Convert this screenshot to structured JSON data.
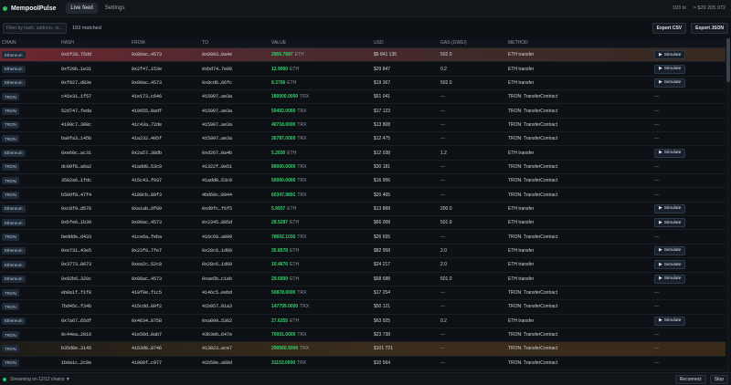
{
  "app": {
    "title": "MempoolPulse"
  },
  "tabs": [
    {
      "label": "Live feed"
    },
    {
      "label": "Settings"
    }
  ],
  "top_stats": {
    "tx_count": "193 tx",
    "usd_total": "≈ $29 205 972"
  },
  "filter": {
    "placeholder": "Filter by hash, address, or...",
    "matched": "193 matched"
  },
  "actions": {
    "export_csv": "Export CSV",
    "export_json": "Export JSON"
  },
  "columns": [
    "CHAIN",
    "HASH",
    "FROM",
    "TO",
    "VALUE",
    "USD",
    "GAS (GWEI)",
    "METHOD",
    ""
  ],
  "simulate_label": "Simulate",
  "rows": [
    {
      "chain": "Ethereum",
      "hash": "0x6f28…75dd",
      "from": "0x80ac…4573",
      "to": "0x0003…0a4e",
      "value": "2956.7687",
      "unit": "ETH",
      "usd": "$6 841 135",
      "gas": "502.0",
      "method": "ETH transfer",
      "sim": true,
      "hl": "red"
    },
    {
      "chain": "Ethereum",
      "hash": "0xf20b…1e31",
      "from": "0x2f47…153e",
      "to": "0xbd74…7e98",
      "value": "12.9000",
      "unit": "ETH",
      "usd": "$29 847",
      "gas": "0.2",
      "method": "ETH transfer",
      "sim": true,
      "hl": ""
    },
    {
      "chain": "Ethereum",
      "hash": "0xf927…d83e",
      "from": "0x80ac…4573",
      "to": "0x0cd6…66fc",
      "value": "8.3706",
      "unit": "ETH",
      "usd": "$19 367",
      "gas": "502.0",
      "method": "ETH transfer",
      "sim": true,
      "hl": ""
    },
    {
      "chain": "TRON",
      "hash": "c41e31…1f57",
      "from": "41e173…c646",
      "to": "415907…ae3a",
      "value": "180000.0000",
      "unit": "TRX",
      "usd": "$61 041",
      "gas": "—",
      "method": "TRON: TransferContract",
      "sim": false,
      "hl": ""
    },
    {
      "chain": "TRON",
      "hash": "52d747…feda",
      "from": "419655…0adf",
      "to": "415907…ae3a",
      "value": "50492.0000",
      "unit": "TRX",
      "usd": "$17 123",
      "gas": "—",
      "method": "TRON: TransferContract",
      "sim": false,
      "hl": ""
    },
    {
      "chain": "TRON",
      "hash": "4100c7…308c",
      "from": "41c43a…72de",
      "to": "415907…ae3a",
      "value": "40718.0000",
      "unit": "TRX",
      "usd": "$13 808",
      "gas": "—",
      "method": "TRON: TransferContract",
      "sim": false,
      "hl": ""
    },
    {
      "chain": "TRON",
      "hash": "ba0fa3…145b",
      "from": "41a232…405f",
      "to": "415907…ae3a",
      "value": "36787.0000",
      "unit": "TRX",
      "usd": "$12 475",
      "gas": "—",
      "method": "TRON: TransferContract",
      "sim": false,
      "hl": ""
    },
    {
      "chain": "Ethereum",
      "hash": "0xe60c…ac31",
      "from": "0x2a57…38db",
      "to": "0xd267…0a4b",
      "value": "5.2030",
      "unit": "ETH",
      "usd": "$12 038",
      "gas": "1.2",
      "method": "ETH transfer",
      "sim": true,
      "hl": ""
    },
    {
      "chain": "TRON",
      "hash": "dc00f8…a6a2",
      "from": "41add0…53c0",
      "to": "41322f…0e51",
      "value": "89000.0000",
      "unit": "TRX",
      "usd": "$30 181",
      "gas": "—",
      "method": "TRON: TransferContract",
      "sim": false,
      "hl": ""
    },
    {
      "chain": "TRON",
      "hash": "3582a6…1fdc",
      "from": "415c43…f037",
      "to": "41add0…53c0",
      "value": "50000.0000",
      "unit": "TRX",
      "usd": "$16 956",
      "gas": "—",
      "method": "TRON: TransferContract",
      "sim": false,
      "hl": ""
    },
    {
      "chain": "TRON",
      "hash": "b59df8…47f4",
      "from": "4189cb…89f3",
      "to": "4bd69c…8944",
      "value": "60347.9891",
      "unit": "TRX",
      "usd": "$20 465",
      "gas": "—",
      "method": "TRON: TransferContract",
      "sim": false,
      "hl": ""
    },
    {
      "chain": "Ethereum",
      "hash": "0xc8f9…d578",
      "from": "0xa1ab…df09",
      "to": "0xd9fc…f6f5",
      "value": "5.9937",
      "unit": "ETH",
      "usd": "$13 868",
      "gas": "200.0",
      "method": "ETH transfer",
      "sim": true,
      "hl": ""
    },
    {
      "chain": "Ethereum",
      "hash": "0xbfe6…1b39",
      "from": "0x80ac…4573",
      "to": "0x2345…885d",
      "value": "28.5287",
      "unit": "ETH",
      "usd": "$66 008",
      "gas": "501.9",
      "method": "ETH transfer",
      "sim": true,
      "hl": ""
    },
    {
      "chain": "TRON",
      "hash": "beddde…d433",
      "from": "41ce6a…feba",
      "to": "416c69…a899",
      "value": "78602.1035",
      "unit": "TRX",
      "usd": "$26 655",
      "gas": "—",
      "method": "TRON: TransferContract",
      "sim": false,
      "hl": ""
    },
    {
      "chain": "Ethereum",
      "hash": "0xe731…43e5",
      "from": "0x23f0…7fe7",
      "to": "0x28c6…1d60",
      "value": "35.8578",
      "unit": "ETH",
      "usd": "$82 958",
      "gas": "2.0",
      "method": "ETH transfer",
      "sim": true,
      "hl": ""
    },
    {
      "chain": "Ethereum",
      "hash": "0x3773…0673",
      "from": "0xea2c…52c8",
      "to": "0x28c6…1d60",
      "value": "10.4676",
      "unit": "ETH",
      "usd": "$24 217",
      "gas": "2.0",
      "method": "ETH transfer",
      "sim": true,
      "hl": ""
    },
    {
      "chain": "Ethereum",
      "hash": "0x02b6…328c",
      "from": "0x80ac…4573",
      "to": "0xae5b…c1eb",
      "value": "29.6899",
      "unit": "ETH",
      "usd": "$68 688",
      "gas": "501.0",
      "method": "ETH transfer",
      "sim": true,
      "hl": ""
    },
    {
      "chain": "TRON",
      "hash": "eb8a1f…f1f8",
      "from": "410f9e…f1c5",
      "to": "4146c5…eebd",
      "value": "50878.0000",
      "unit": "TRX",
      "usd": "$17 254",
      "gas": "—",
      "method": "TRON: TransferContract",
      "sim": false,
      "hl": ""
    },
    {
      "chain": "TRON",
      "hash": "7bd45c…f34b",
      "from": "415cdd…09f2",
      "to": "41b957…91a3",
      "value": "147799.0000",
      "unit": "TRX",
      "usd": "$50 121",
      "gas": "—",
      "method": "TRON: TransferContract",
      "sim": false,
      "hl": ""
    },
    {
      "chain": "Ethereum",
      "hash": "0x7a67…65df",
      "from": "0x4634…8758",
      "to": "0xa099…5362",
      "value": "27.6255",
      "unit": "ETH",
      "usd": "$63 925",
      "gas": "0.2",
      "method": "ETH transfer",
      "sim": true,
      "hl": ""
    },
    {
      "chain": "TRON",
      "hash": "9c44ea…2816",
      "from": "41e50d…0ab7",
      "to": "43b3eb…647e",
      "value": "70001.0000",
      "unit": "TRX",
      "usd": "$23 738",
      "gas": "—",
      "method": "TRON: TransferContract",
      "sim": false,
      "hl": ""
    },
    {
      "chain": "TRON",
      "hash": "b35d8e…3145",
      "from": "4163d8…8746",
      "to": "413823…ace7",
      "value": "299560.5000",
      "unit": "TRX",
      "usd": "$101 721",
      "gas": "—",
      "method": "TRON: TransferContract",
      "sim": false,
      "hl": "amber"
    },
    {
      "chain": "TRON",
      "hash": "1b9a1c…2c8e",
      "from": "41980f…c977",
      "to": "41b59e…a68d",
      "value": "31153.0000",
      "unit": "TRX",
      "usd": "$10 564",
      "gas": "—",
      "method": "TRON: TransferContract",
      "sim": false,
      "hl": ""
    }
  ],
  "status": {
    "text": "Streaming on 12/12 chains ▼",
    "reconnect": "Reconnect",
    "stop": "Stop"
  }
}
